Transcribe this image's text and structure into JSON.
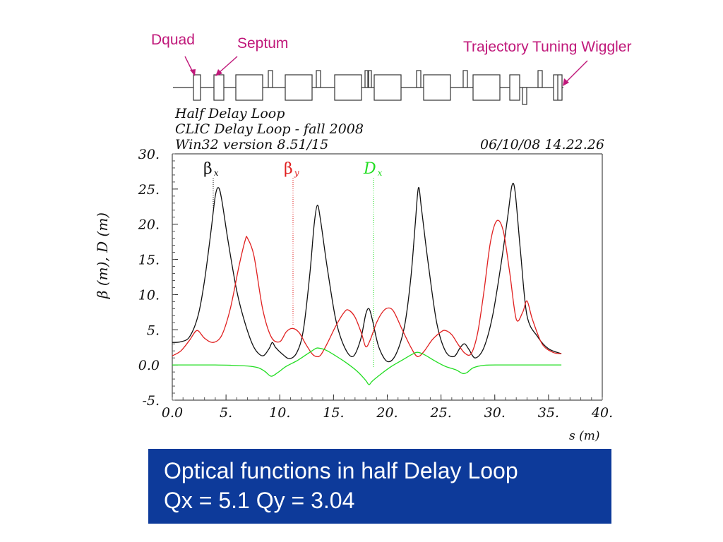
{
  "annotations": {
    "dquad": "Dquad",
    "septum": "Septum",
    "wiggler": "Trajectory Tuning Wiggler"
  },
  "plot_header": {
    "line1": "Half Delay Loop",
    "line2": "CLIC Delay Loop - fall 2008",
    "line3": "Win32 version 8.51/15",
    "timestamp": "06/10/08  14.22.26"
  },
  "caption": {
    "line1": "Optical functions in half Delay Loop",
    "line2": "Qx = 5.1  Qy = 3.04"
  },
  "colors": {
    "beta_x": "#111111",
    "beta_y": "#e02020",
    "dispersion": "#22dd22",
    "annotation": "#c0187a",
    "caption_bg": "#0d3a9a"
  },
  "chart_data": {
    "type": "line",
    "title": "",
    "xlabel": "s (m)",
    "ylabel": "β  (m),  D (m)",
    "xlim": [
      0,
      40
    ],
    "ylim": [
      -5,
      30
    ],
    "xticks": [
      "0.0",
      "5.",
      "10.",
      "15.",
      "20.",
      "25.",
      "30.",
      "35.",
      "40."
    ],
    "yticks": [
      "-5.",
      "0.0",
      "5.",
      "10.",
      "15.",
      "20.",
      "25.",
      "30."
    ],
    "grid": false,
    "legend_position": "top",
    "series": [
      {
        "name": "βx",
        "color": "#111111",
        "x": [
          0.0,
          0.8,
          1.6,
          2.4,
          3.0,
          3.6,
          4.0,
          4.3,
          4.6,
          5.2,
          6.0,
          6.8,
          7.6,
          8.4,
          9.0,
          9.3,
          9.6,
          10.2,
          10.9,
          11.6,
          12.2,
          12.8,
          13.2,
          13.5,
          13.8,
          14.4,
          15.2,
          16.0,
          16.8,
          17.5,
          18.0,
          18.3,
          18.6,
          19.2,
          20.0,
          20.8,
          21.6,
          22.2,
          22.6,
          22.9,
          23.2,
          23.8,
          24.6,
          25.4,
          26.2,
          26.8,
          27.2,
          27.6,
          28.2,
          29.0,
          29.8,
          30.6,
          31.2,
          31.6,
          31.9,
          32.4,
          33.0,
          34.0,
          35.0,
          36.2
        ],
        "values": [
          3.2,
          3.3,
          4.0,
          7.0,
          12.0,
          19.0,
          24.0,
          25.2,
          23.5,
          17.5,
          10.5,
          5.8,
          2.5,
          1.3,
          2.3,
          3.2,
          2.5,
          1.6,
          0.9,
          1.8,
          5.0,
          13.0,
          20.0,
          22.7,
          20.5,
          14.0,
          6.5,
          2.6,
          1.2,
          3.5,
          7.2,
          8.0,
          6.5,
          2.6,
          0.5,
          1.5,
          5.5,
          12.5,
          20.0,
          25.2,
          22.0,
          14.5,
          6.0,
          2.0,
          1.2,
          2.5,
          3.0,
          2.2,
          1.0,
          2.5,
          7.0,
          14.5,
          21.0,
          25.5,
          24.5,
          16.0,
          7.0,
          4.0,
          2.3,
          1.6
        ]
      },
      {
        "name": "βy",
        "color": "#e02020",
        "x": [
          0.0,
          0.8,
          1.6,
          2.3,
          3.0,
          3.8,
          4.6,
          5.4,
          6.2,
          6.8,
          7.0,
          7.6,
          8.4,
          9.2,
          10.0,
          10.6,
          11.2,
          11.8,
          12.4,
          13.0,
          13.4,
          13.8,
          14.4,
          15.2,
          16.0,
          16.4,
          17.0,
          17.6,
          18.0,
          18.4,
          19.0,
          19.6,
          20.1,
          20.6,
          21.4,
          22.2,
          22.8,
          23.4,
          24.2,
          25.0,
          25.4,
          26.0,
          26.6,
          27.2,
          27.8,
          28.4,
          29.0,
          29.6,
          30.2,
          30.8,
          31.4,
          32.0,
          32.6,
          33.0,
          33.5,
          34.4,
          35.4,
          36.2
        ],
        "values": [
          1.3,
          2.0,
          3.5,
          4.9,
          3.8,
          3.2,
          4.2,
          8.0,
          14.0,
          17.8,
          18.0,
          15.5,
          8.0,
          4.0,
          3.3,
          4.7,
          5.2,
          4.6,
          3.0,
          1.6,
          1.2,
          1.4,
          3.0,
          5.5,
          7.5,
          7.8,
          6.8,
          4.5,
          2.6,
          3.5,
          6.0,
          7.6,
          8.1,
          7.6,
          5.0,
          2.5,
          1.2,
          1.9,
          3.6,
          4.7,
          4.9,
          4.3,
          2.9,
          1.7,
          1.6,
          4.5,
          10.5,
          17.5,
          20.5,
          19.0,
          13.0,
          6.5,
          7.5,
          9.1,
          6.5,
          3.0,
          1.8,
          1.6
        ]
      },
      {
        "name": "Dx",
        "color": "#22dd22",
        "x": [
          0.0,
          2.0,
          4.0,
          5.5,
          7.0,
          8.0,
          8.6,
          9.2,
          9.8,
          10.6,
          11.6,
          12.6,
          13.3,
          13.6,
          14.3,
          15.2,
          16.2,
          17.2,
          18.0,
          18.3,
          18.6,
          19.4,
          20.4,
          21.4,
          22.3,
          22.8,
          23.4,
          24.4,
          25.4,
          26.4,
          27.0,
          27.4,
          28.0,
          29.0,
          30.5,
          32.0,
          34.0,
          36.2
        ],
        "values": [
          0.0,
          0.0,
          0.0,
          -0.05,
          -0.15,
          -0.4,
          -0.9,
          -1.6,
          -1.1,
          -0.2,
          0.6,
          1.6,
          2.3,
          2.4,
          2.1,
          1.3,
          0.3,
          -0.9,
          -2.2,
          -2.8,
          -2.3,
          -1.3,
          -0.2,
          0.7,
          1.5,
          1.8,
          1.5,
          0.6,
          -0.2,
          -0.7,
          -1.2,
          -1.1,
          -0.4,
          -0.05,
          0.0,
          0.0,
          0.0,
          0.0
        ]
      }
    ]
  }
}
